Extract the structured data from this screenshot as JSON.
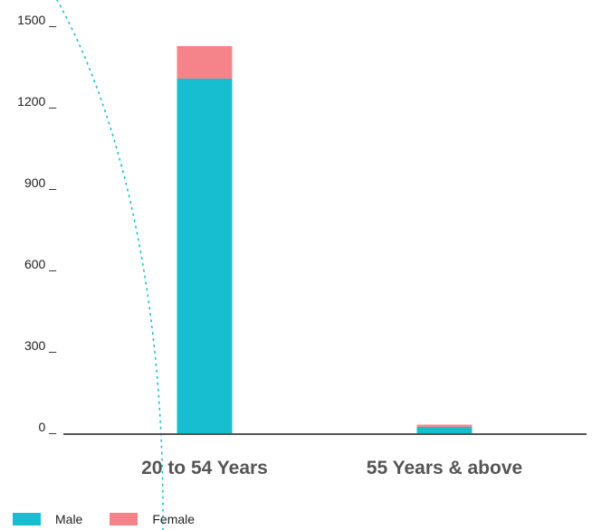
{
  "chart_data": {
    "type": "bar",
    "stacked": true,
    "categories": [
      "20 to 54 Years",
      "55 Years & above"
    ],
    "series": [
      {
        "name": "Male",
        "values": [
          1310,
          27
        ],
        "color": "#17BECF"
      },
      {
        "name": "Female",
        "values": [
          120,
          8
        ],
        "color": "#F4848A"
      }
    ],
    "yticks": [
      0,
      300,
      600,
      900,
      1200,
      1500
    ],
    "ytick_labels": [
      "0 _",
      "300 _",
      "600 _",
      "900 _",
      "1200 _",
      "1500 _"
    ],
    "ylim": [
      0,
      1500
    ],
    "grid": false,
    "legend_position": "bottom-left"
  },
  "colors": {
    "axis": "#555555",
    "decoration": "#17BECF"
  }
}
